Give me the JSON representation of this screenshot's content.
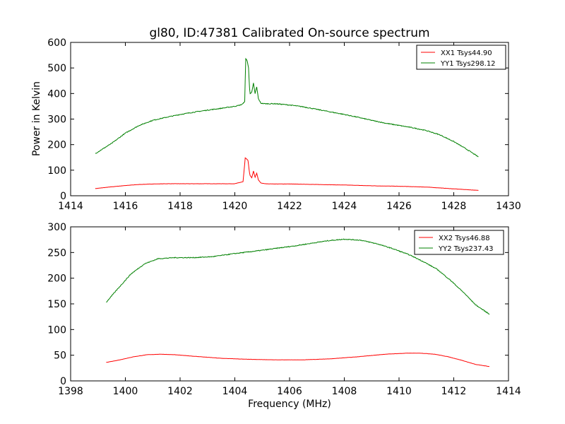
{
  "chart_data": [
    {
      "type": "line",
      "title": "gl80, ID:47381 Calibrated On-source spectrum",
      "xlabel": "",
      "ylabel": "Power in Kelvin",
      "xlim": [
        1414,
        1430
      ],
      "ylim": [
        0,
        600
      ],
      "xticks": [
        1414,
        1416,
        1418,
        1420,
        1422,
        1424,
        1426,
        1428,
        1430
      ],
      "yticks": [
        0,
        100,
        200,
        300,
        400,
        500,
        600
      ],
      "legend": "top-right",
      "series": [
        {
          "name": "XX1 Tsys44.90",
          "color": "#ff0000",
          "x": [
            1414.9,
            1415.5,
            1416,
            1416.5,
            1417,
            1417.5,
            1418,
            1419,
            1420,
            1420.3,
            1420.38,
            1420.42,
            1420.48,
            1420.55,
            1420.62,
            1420.68,
            1420.74,
            1420.8,
            1420.86,
            1420.95,
            1421.1,
            1421.5,
            1422,
            1423,
            1424,
            1425,
            1426,
            1427,
            1428,
            1428.9
          ],
          "y": [
            28,
            35,
            40,
            44,
            46,
            47,
            47,
            47,
            47,
            55,
            148,
            145,
            138,
            80,
            70,
            97,
            72,
            88,
            62,
            50,
            47,
            46,
            46,
            44,
            42,
            39,
            37,
            34,
            27,
            21
          ]
        },
        {
          "name": "YY1 Tsys298.12",
          "color": "#008000",
          "x": [
            1414.9,
            1415.5,
            1416,
            1416.5,
            1417,
            1417.5,
            1418,
            1418.5,
            1419,
            1419.5,
            1420,
            1420.2,
            1420.3,
            1420.36,
            1420.4,
            1420.45,
            1420.5,
            1420.55,
            1420.62,
            1420.68,
            1420.74,
            1420.8,
            1420.86,
            1420.95,
            1421.1,
            1421.5,
            1422,
            1422.5,
            1423,
            1423.5,
            1424,
            1424.5,
            1425,
            1425.5,
            1426,
            1426.5,
            1427,
            1427.5,
            1428,
            1428.5,
            1428.9
          ],
          "y": [
            165,
            205,
            245,
            275,
            295,
            307,
            318,
            327,
            335,
            342,
            350,
            355,
            360,
            370,
            535,
            530,
            500,
            400,
            405,
            440,
            400,
            425,
            380,
            362,
            360,
            360,
            355,
            348,
            338,
            328,
            318,
            307,
            295,
            284,
            275,
            266,
            255,
            238,
            212,
            180,
            152
          ]
        }
      ]
    },
    {
      "type": "line",
      "title": "",
      "xlabel": "Frequency (MHz)",
      "ylabel": "",
      "xlim": [
        1398,
        1414
      ],
      "ylim": [
        0,
        300
      ],
      "xticks": [
        1398,
        1400,
        1402,
        1404,
        1406,
        1408,
        1410,
        1412,
        1414
      ],
      "yticks": [
        0,
        50,
        100,
        150,
        200,
        250,
        300
      ],
      "legend": "top-right",
      "series": [
        {
          "name": "XX2 Tsys46.88",
          "color": "#ff0000",
          "x": [
            1399.3,
            1399.8,
            1400.3,
            1400.8,
            1401.3,
            1401.8,
            1402.5,
            1403.5,
            1404.5,
            1405.5,
            1406.5,
            1407.5,
            1408.5,
            1409.5,
            1410.3,
            1410.8,
            1411.3,
            1411.8,
            1412.3,
            1412.8,
            1413.3
          ],
          "y": [
            36,
            41,
            47,
            51,
            52,
            51,
            48,
            44,
            42,
            41,
            41,
            43,
            47,
            52,
            54,
            54,
            52,
            47,
            40,
            32,
            28
          ]
        },
        {
          "name": "YY2 Tsys237.43",
          "color": "#008000",
          "x": [
            1399.3,
            1399.7,
            1400.2,
            1400.7,
            1401.2,
            1401.8,
            1402.5,
            1403.2,
            1404,
            1404.8,
            1405.5,
            1406.2,
            1406.8,
            1407.4,
            1408,
            1408.6,
            1409.2,
            1409.8,
            1410.4,
            1410.9,
            1411.4,
            1411.9,
            1412.4,
            1412.8,
            1413.3
          ],
          "y": [
            153,
            178,
            208,
            228,
            238,
            240,
            240,
            242,
            248,
            253,
            258,
            263,
            268,
            273,
            276,
            274,
            267,
            257,
            245,
            232,
            217,
            195,
            170,
            148,
            130
          ]
        }
      ]
    }
  ]
}
